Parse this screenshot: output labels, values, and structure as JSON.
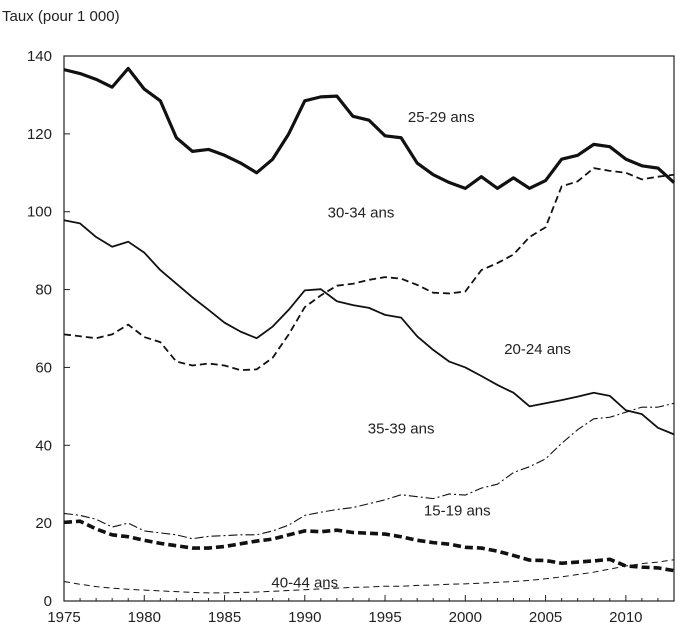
{
  "chart_data": {
    "type": "line",
    "title": "",
    "ylabel": "Taux (pour 1 000)",
    "xlabel": "",
    "xlim": [
      1975,
      2013
    ],
    "ylim": [
      0,
      140
    ],
    "x_ticks": [
      "1975",
      "1980",
      "1985",
      "1990",
      "1995",
      "2000",
      "2005",
      "2010"
    ],
    "y_ticks": [
      "0",
      "20",
      "40",
      "60",
      "80",
      "100",
      "120",
      "140"
    ],
    "grid": false,
    "legend": "none (series labelled directly on lines)",
    "x": [
      1975,
      1976,
      1977,
      1978,
      1979,
      1980,
      1981,
      1982,
      1983,
      1984,
      1985,
      1986,
      1987,
      1988,
      1989,
      1990,
      1991,
      1992,
      1993,
      1994,
      1995,
      1996,
      1997,
      1998,
      1999,
      2000,
      2001,
      2002,
      2003,
      2004,
      2005,
      2006,
      2007,
      2008,
      2009,
      2010,
      2011,
      2012,
      2013
    ],
    "series": [
      {
        "name": "25-29 ans",
        "style": "thick-solid",
        "values": [
          136.5,
          135.5,
          134,
          132,
          136.8,
          131.5,
          128.5,
          119,
          115.5,
          116,
          114.5,
          112.5,
          110,
          113.5,
          120,
          128.5,
          129.5,
          129.7,
          124.5,
          123.5,
          119.5,
          119,
          112.5,
          109.5,
          107.5,
          106,
          109,
          106,
          108.7,
          106,
          108,
          113.5,
          114.5,
          117.3,
          116.7,
          113.5,
          111.8,
          111.2,
          107.5
        ]
      },
      {
        "name": "30-34 ans",
        "style": "dashed",
        "values": [
          68.5,
          68,
          67.5,
          68.5,
          71,
          67.8,
          66.5,
          61.5,
          60.5,
          61,
          60.5,
          59.3,
          59.5,
          62.5,
          68.5,
          75.5,
          78.5,
          81,
          81.5,
          82.5,
          83.2,
          82.8,
          81.2,
          79.2,
          79,
          79.5,
          85,
          86.8,
          89,
          93.5,
          96,
          106.5,
          107.8,
          111.2,
          110.5,
          110,
          108.3,
          109,
          109.5
        ]
      },
      {
        "name": "20-24 ans",
        "style": "solid",
        "values": [
          97.8,
          97,
          93.5,
          91,
          92.3,
          89.5,
          85,
          81.5,
          78,
          74.8,
          71.5,
          69.2,
          67.5,
          70.5,
          74.8,
          79.8,
          80.1,
          77,
          76,
          75.3,
          73.5,
          72.8,
          68,
          64.5,
          61.5,
          60,
          57.8,
          55.5,
          53.5,
          50,
          50.8,
          51.6,
          52.5,
          53.5,
          52.7,
          49,
          48,
          44.5,
          42.8
        ]
      },
      {
        "name": "35-39 ans",
        "style": "dash-dot",
        "values": [
          22.5,
          22,
          21,
          19,
          20,
          18,
          17.5,
          17,
          16,
          16.6,
          16.8,
          17,
          17,
          18,
          19.5,
          22,
          22.8,
          23.5,
          24,
          25,
          26,
          27.3,
          26.8,
          26.3,
          27.5,
          27.2,
          29,
          30,
          33,
          34.5,
          36.5,
          40.5,
          44,
          46.8,
          47.2,
          48.5,
          49.8,
          49.8,
          50.8
        ]
      },
      {
        "name": "15-19 ans",
        "style": "thick-dashed",
        "values": [
          20.2,
          20.5,
          18.5,
          17,
          16.5,
          15.6,
          14.8,
          14.2,
          13.6,
          13.6,
          14,
          14.7,
          15.4,
          15.9,
          17,
          18,
          17.8,
          18.2,
          17.6,
          17.4,
          17.2,
          16.5,
          15.6,
          15,
          14.6,
          13.8,
          13.6,
          12.8,
          11.7,
          10.5,
          10.4,
          9.7,
          10,
          10.3,
          10.7,
          9,
          8.7,
          8.5,
          7.8
        ]
      },
      {
        "name": "40-44 ans",
        "style": "thin-dashed",
        "values": [
          5,
          4.3,
          3.7,
          3.3,
          3,
          2.8,
          2.6,
          2.4,
          2.2,
          2.1,
          2.1,
          2.2,
          2.3,
          2.5,
          2.7,
          2.9,
          3.1,
          3.3,
          3.5,
          3.6,
          3.8,
          3.8,
          4,
          4.1,
          4.3,
          4.4,
          4.6,
          4.8,
          5,
          5.3,
          5.7,
          6.2,
          6.8,
          7.4,
          8.2,
          9,
          9.6,
          10,
          10.6
        ]
      }
    ],
    "series_labels": [
      "25-29 ans",
      "30-34 ans",
      "20-24 ans",
      "35-39 ans",
      "15-19 ans",
      "40-44 ans"
    ]
  }
}
